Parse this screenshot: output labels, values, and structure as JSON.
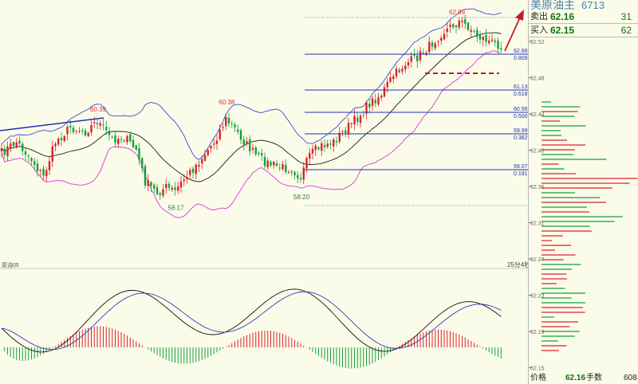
{
  "panel": {
    "title": "美原油主",
    "code": "6713",
    "sell_label": "卖出",
    "sell_price": "62.16",
    "sell_volume": "31",
    "buy_label": "买入",
    "buy_price": "62.15",
    "buy_volume": "62",
    "footer_price_label": "价格",
    "footer_price": "62.16",
    "footer_volume_label": "手数",
    "footer_volume": "608"
  },
  "colors": {
    "bg": "#fbfbe9",
    "up": "#d9232b",
    "down": "#12a13a",
    "boll_upper": "#3c4bc8",
    "boll_mid": "#1a1a1a",
    "boll_lower": "#d23cd2",
    "fib": "#1f2fb5",
    "grid_dot": "#6a6fd0",
    "trend": "#1f2fb5",
    "arrow": "#c41a2a",
    "dash": "#c41a2a",
    "label": "#e03030",
    "axis_text": "#666666"
  },
  "chart_data": {
    "type": "candlestick",
    "peak_labels": [
      {
        "text": "60.39",
        "bar": 32
      },
      {
        "text": "60.38",
        "bar": 75
      },
      {
        "text": "62.99",
        "bar": 152
      }
    ],
    "trough_labels": [
      {
        "text": "58.17",
        "bar": 58
      },
      {
        "text": "58.20",
        "bar": 100
      }
    ],
    "fib_levels": [
      {
        "price": "62.66",
        "ratio": "0.809"
      },
      {
        "price": "61.13",
        "ratio": "0.618"
      },
      {
        "price": "60.56",
        "ratio": "0.500"
      },
      {
        "price": "59.99",
        "ratio": "0.382"
      },
      {
        "price": "59.07",
        "ratio": "0.191"
      }
    ],
    "symbol_label": "原油05",
    "period_label": "25分4秒",
    "price_axis_ticks": [
      "62.52",
      "62.48",
      "62.44",
      "62.40",
      "62.36",
      "62.31",
      "62.27",
      "62.23",
      "62.19",
      "62.15"
    ]
  }
}
